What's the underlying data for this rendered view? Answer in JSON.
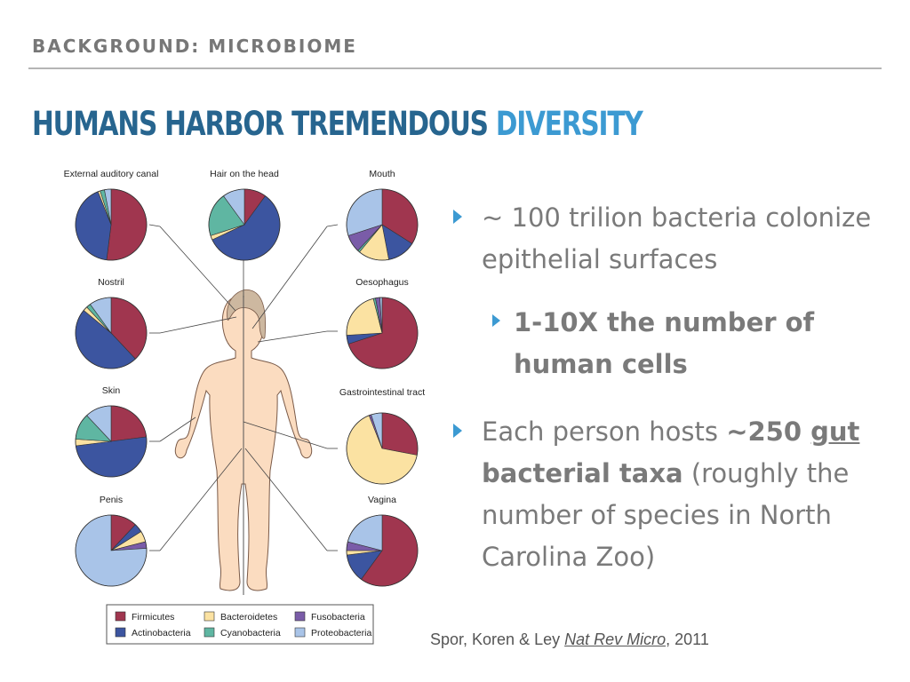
{
  "header": {
    "section": "BACKGROUND: MICROBIOME"
  },
  "title": {
    "part1": "HUMANS HARBOR TREMENDOUS ",
    "part2": "DIVERSITY"
  },
  "colors": {
    "firmicutes": "#a0364f",
    "actinobacteria": "#3c55a0",
    "bacteroidetes": "#fbe2a2",
    "cyanobacteria": "#5fb6a2",
    "fusobacteria": "#7a5ca8",
    "proteobacteria": "#a9c4e8"
  },
  "figure": {
    "pies": [
      {
        "label": "External auditory canal",
        "slices": [
          0.52,
          0.42,
          0.01,
          0.02,
          0.0,
          0.03
        ]
      },
      {
        "label": "Hair on the head",
        "slices": [
          0.1,
          0.58,
          0.02,
          0.2,
          0.0,
          0.1
        ]
      },
      {
        "label": "Mouth",
        "slices": [
          0.34,
          0.13,
          0.14,
          0.01,
          0.08,
          0.3
        ]
      },
      {
        "label": "Nostril",
        "slices": [
          0.38,
          0.48,
          0.02,
          0.02,
          0.0,
          0.1
        ]
      },
      {
        "label": "Oesophagus",
        "slices": [
          0.7,
          0.04,
          0.22,
          0.01,
          0.02,
          0.01
        ]
      },
      {
        "label": "Skin",
        "slices": [
          0.23,
          0.5,
          0.03,
          0.12,
          0.0,
          0.12
        ]
      },
      {
        "label": "Gastrointestinal tract",
        "slices": [
          0.28,
          0.0,
          0.66,
          0.0,
          0.01,
          0.05
        ]
      },
      {
        "label": "Penis",
        "slices": [
          0.12,
          0.04,
          0.05,
          0.0,
          0.03,
          0.76
        ]
      },
      {
        "label": "Vagina",
        "slices": [
          0.6,
          0.13,
          0.02,
          0.0,
          0.04,
          0.21
        ]
      }
    ],
    "legend": [
      "Firmicutes",
      "Bacteroidetes",
      "Fusobacteria",
      "Actinobacteria",
      "Cyanobacteria",
      "Proteobacteria"
    ]
  },
  "bullets": {
    "b1": "~ 100 trilion bacteria colonize epithelial surfaces",
    "b2": "1-10X the number of human cells",
    "b3_a": "Each person hosts ",
    "b3_b": "~250 ",
    "b3_c": "gut",
    "b3_d": " bacterial taxa",
    "b3_e": " (roughly the number of species in North Carolina Zoo)"
  },
  "citation": {
    "authors": "Spor, Koren & Ley ",
    "journal": "Nat Rev Micro",
    "year": ", 2011"
  }
}
